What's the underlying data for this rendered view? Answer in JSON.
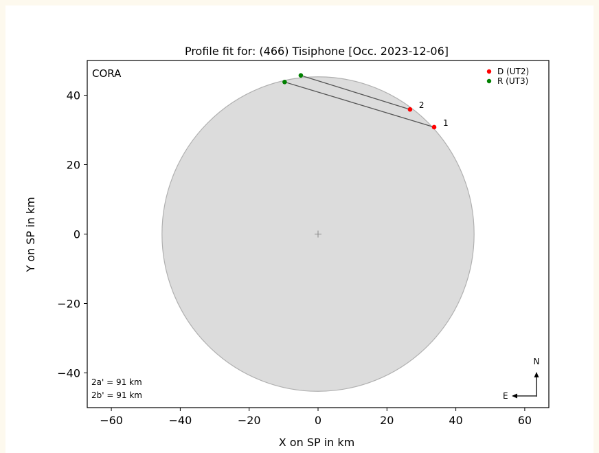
{
  "chart_data": {
    "type": "scatter",
    "title": "Profile fit for: (466) Tisiphone [Occ. 2023-12-06]",
    "xlabel": "X on SP in km",
    "ylabel": "Y on SP in km",
    "xlim": [
      -67,
      67
    ],
    "ylim": [
      -50,
      50
    ],
    "xticks": [
      -60,
      -40,
      -20,
      0,
      20,
      40,
      60
    ],
    "yticks": [
      -40,
      -20,
      0,
      20,
      40
    ],
    "xtick_labels": [
      "−60",
      "−40",
      "−20",
      "0",
      "20",
      "40",
      "60"
    ],
    "ytick_labels": [
      "−40",
      "−20",
      "0",
      "20",
      "40"
    ],
    "grid": false,
    "corner_label": "CORA",
    "ellipse": {
      "center": [
        0,
        0
      ],
      "semi_major": 45.3,
      "semi_minor": 45.3,
      "fill": "#dcdcdc",
      "edge": "#b0b0b0"
    },
    "center_marker": [
      0,
      0
    ],
    "chords": [
      {
        "id": "1",
        "label": "1",
        "d": [
          33.7,
          30.8
        ],
        "r": [
          -9.7,
          43.8
        ]
      },
      {
        "id": "2",
        "label": "2",
        "d": [
          26.7,
          35.9
        ],
        "r": [
          -5.0,
          45.7
        ]
      }
    ],
    "legend": {
      "position": "top-right",
      "entries": [
        {
          "label": "D (UT2)",
          "color": "#ff0000"
        },
        {
          "label": "R (UT3)",
          "color": "#008000"
        }
      ]
    },
    "annotations": {
      "size_a": "2a'  =  91 km",
      "size_b": "2b'  =  91 km"
    },
    "compass": {
      "north": "N",
      "east": "E"
    }
  }
}
